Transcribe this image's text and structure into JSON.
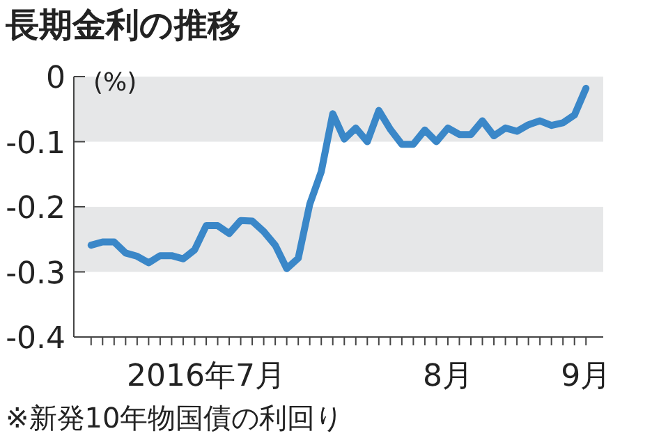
{
  "chart_data": {
    "type": "line",
    "title": "長期金利の推移",
    "ylabel": "(%)",
    "annotations": [
      "※新発10年物国債の利回り"
    ],
    "categories": [
      null,
      null,
      null,
      null,
      null,
      null,
      null,
      null,
      null,
      null,
      "2016年7月",
      null,
      null,
      null,
      null,
      null,
      null,
      null,
      null,
      null,
      null,
      null,
      null,
      null,
      null,
      null,
      null,
      null,
      null,
      null,
      null,
      "8月",
      null,
      null,
      null,
      null,
      null,
      null,
      null,
      null,
      null,
      null,
      null,
      "9月"
    ],
    "series": [
      {
        "color": "#3a87c8",
        "values": [
          -0.259,
          -0.254,
          -0.254,
          -0.271,
          -0.276,
          -0.286,
          -0.275,
          -0.275,
          -0.28,
          -0.266,
          -0.229,
          -0.229,
          -0.241,
          -0.221,
          -0.222,
          -0.238,
          -0.259,
          -0.295,
          -0.279,
          -0.196,
          -0.146,
          -0.057,
          -0.096,
          -0.079,
          -0.1,
          -0.052,
          -0.081,
          -0.104,
          -0.104,
          -0.082,
          -0.1,
          -0.079,
          -0.089,
          -0.089,
          -0.068,
          -0.091,
          -0.079,
          -0.084,
          -0.074,
          -0.068,
          -0.075,
          -0.071,
          -0.059,
          -0.018
        ]
      }
    ],
    "ylim": [
      -0.4,
      0
    ],
    "yticks": [
      0,
      {
        "value": -0.1,
        "label": "-0.1"
      },
      {
        "value": -0.2,
        "label": "-0.2"
      },
      {
        "value": -0.3,
        "label": "-0.3"
      },
      {
        "value": -0.4,
        "label": "-0.4"
      }
    ],
    "bands": [
      {
        "axis": "y",
        "from": -0.1,
        "to": 0,
        "color": "#e6e7e8"
      },
      {
        "axis": "y",
        "from": -0.3,
        "to": -0.2,
        "color": "#e6e7e8"
      }
    ],
    "grid": false,
    "marker": "none",
    "line_style": "solid"
  }
}
